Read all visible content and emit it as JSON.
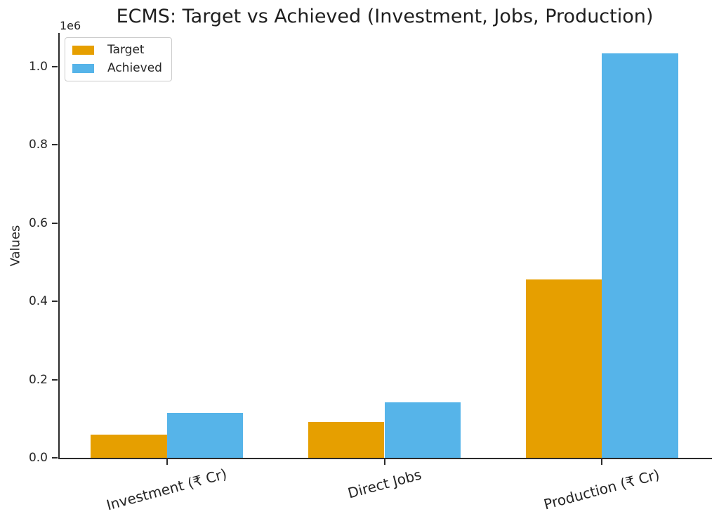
{
  "figure": {
    "background": "#ffffff",
    "text_color": "#262626"
  },
  "chart_data": {
    "type": "bar",
    "title": "ECMS: Target vs Achieved (Investment, Jobs, Production)",
    "ylabel": "Values",
    "xlabel": "",
    "y_offset_label": "1e6",
    "categories": [
      "Investment (₹ Cr)",
      "Direct Jobs",
      "Production (₹ Cr)"
    ],
    "series": [
      {
        "name": "Target",
        "color": "#E69F00",
        "values": [
          59350,
          91600,
          456500
        ]
      },
      {
        "name": "Achieved",
        "color": "#56B4E9",
        "values": [
          115351,
          141000,
          1034000
        ]
      }
    ],
    "ylim": [
      0,
      1085700
    ],
    "yticks": [
      0,
      200000,
      400000,
      600000,
      800000,
      1000000
    ],
    "ytick_labels": [
      "0.0",
      "0.2",
      "0.4",
      "0.6",
      "0.8",
      "1.0"
    ],
    "bar_width_frac": 0.35,
    "xtick_rotation_deg": 15,
    "grid": false,
    "legend_position": "upper left"
  }
}
